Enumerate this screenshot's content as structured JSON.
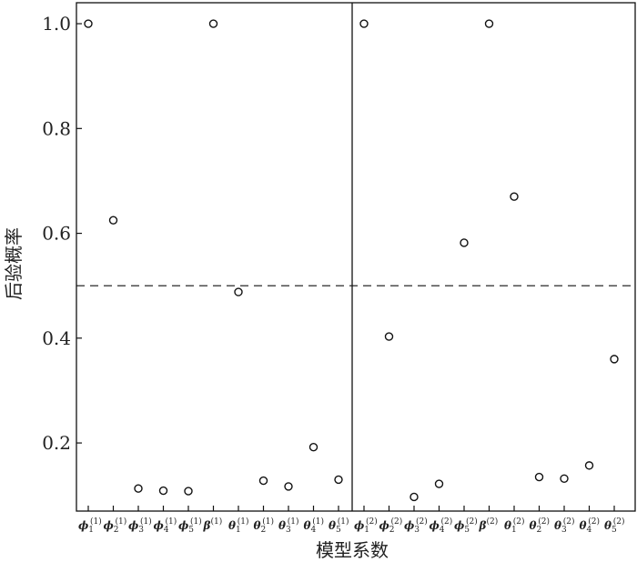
{
  "chart_data": {
    "type": "scatter",
    "xlabel": "模型系数",
    "ylabel": "后验概率",
    "ylim": [
      0.07,
      1.04
    ],
    "yticks": [
      "0.2",
      "0.4",
      "0.6",
      "0.8",
      "1.0"
    ],
    "yticks_values": [
      0.2,
      0.4,
      0.6,
      0.8,
      1.0
    ],
    "threshold": 0.5,
    "panels": [
      {
        "categories": [
          {
            "base": "ϕ",
            "sub": "1",
            "sup": "(1)"
          },
          {
            "base": "ϕ",
            "sub": "2",
            "sup": "(1)"
          },
          {
            "base": "ϕ",
            "sub": "3",
            "sup": "(1)"
          },
          {
            "base": "ϕ",
            "sub": "4",
            "sup": "(1)"
          },
          {
            "base": "ϕ",
            "sub": "5",
            "sup": "(1)"
          },
          {
            "base": "β",
            "sub": "",
            "sup": "(1)"
          },
          {
            "base": "θ",
            "sub": "1",
            "sup": "(1)"
          },
          {
            "base": "θ",
            "sub": "2",
            "sup": "(1)"
          },
          {
            "base": "θ",
            "sub": "3",
            "sup": "(1)"
          },
          {
            "base": "θ",
            "sub": "4",
            "sup": "(1)"
          },
          {
            "base": "θ",
            "sub": "5",
            "sup": "(1)"
          }
        ],
        "values": [
          1.0,
          0.625,
          0.113,
          0.109,
          0.108,
          1.0,
          0.488,
          0.128,
          0.117,
          0.192,
          0.13
        ]
      },
      {
        "categories": [
          {
            "base": "ϕ",
            "sub": "1",
            "sup": "(2)"
          },
          {
            "base": "ϕ",
            "sub": "2",
            "sup": "(2)"
          },
          {
            "base": "ϕ",
            "sub": "3",
            "sup": "(2)"
          },
          {
            "base": "ϕ",
            "sub": "4",
            "sup": "(2)"
          },
          {
            "base": "ϕ",
            "sub": "5",
            "sup": "(2)"
          },
          {
            "base": "β",
            "sub": "",
            "sup": "(2)"
          },
          {
            "base": "θ",
            "sub": "1",
            "sup": "(2)"
          },
          {
            "base": "θ",
            "sub": "2",
            "sup": "(2)"
          },
          {
            "base": "θ",
            "sub": "3",
            "sup": "(2)"
          },
          {
            "base": "θ",
            "sub": "4",
            "sup": "(2)"
          },
          {
            "base": "θ",
            "sub": "5",
            "sup": "(2)"
          }
        ],
        "values": [
          1.0,
          0.403,
          0.097,
          0.122,
          0.582,
          1.0,
          0.67,
          0.135,
          0.132,
          0.157,
          0.36
        ]
      }
    ]
  }
}
